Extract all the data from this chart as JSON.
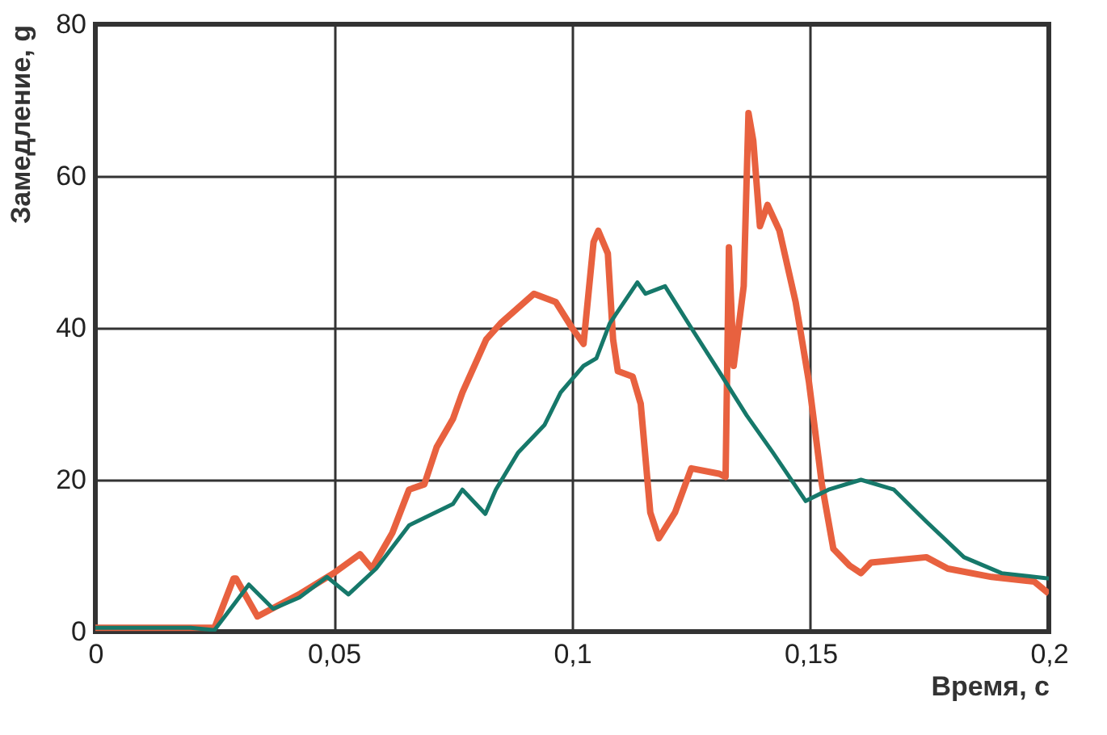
{
  "chart_data": {
    "type": "line",
    "xlabel": "Время, с",
    "ylabel": "Замедление, g",
    "xlim": [
      0,
      0.2
    ],
    "ylim": [
      0,
      80
    ],
    "xticks": [
      0,
      {
        "value": 0.05,
        "label": "0,05"
      },
      {
        "value": 0.1,
        "label": "0,1"
      },
      {
        "value": 0.15,
        "label": "0,15"
      },
      {
        "value": 0.2,
        "label": "0,2"
      }
    ],
    "yticks": [
      0,
      20,
      40,
      60,
      80
    ],
    "grid": true,
    "marker": "none",
    "line_style": "solid",
    "series": [
      {
        "color": "#e8613f",
        "x": [
          0,
          0.01,
          0.02,
          0.025,
          0.029,
          0.0295,
          0.034,
          0.043,
          0.05,
          0.0555,
          0.058,
          0.0623,
          0.0658,
          0.069,
          0.0716,
          0.075,
          0.077,
          0.082,
          0.085,
          0.092,
          0.0966,
          0.1,
          0.1024,
          0.1045,
          0.1055,
          0.1075,
          0.1086,
          0.1096,
          0.1127,
          0.1144,
          0.1164,
          0.1182,
          0.1216,
          0.125,
          0.1308,
          0.1322,
          0.1329,
          0.1339,
          0.136,
          0.137,
          0.138,
          0.1394,
          0.141,
          0.1435,
          0.1469,
          0.1497,
          0.1524,
          0.1548,
          0.1582,
          0.1606,
          0.1627,
          0.1743,
          0.1788,
          0.188,
          0.1969,
          0.2
        ],
        "values": [
          0.5,
          0.5,
          0.5,
          0.5,
          7,
          7,
          2,
          5,
          7.7,
          10.2,
          8.3,
          13,
          18.7,
          19.4,
          24.3,
          28,
          31.5,
          38.5,
          40.6,
          44.5,
          43.4,
          40,
          37.9,
          51.3,
          52.8,
          49.8,
          38.5,
          34.3,
          33.6,
          30,
          15.7,
          12.3,
          15.7,
          21.5,
          20.8,
          20.4,
          50.6,
          35,
          45.5,
          68.3,
          64.7,
          53.4,
          56.2,
          52.8,
          43.4,
          32.8,
          19.4,
          10.9,
          8.7,
          7.7,
          9.1,
          9.8,
          8.3,
          7.2,
          6.6,
          5
        ]
      },
      {
        "color": "#16786a",
        "x": [
          0,
          0.01,
          0.02,
          0.025,
          0.0322,
          0.0373,
          0.0428,
          0.0486,
          0.0531,
          0.0589,
          0.0658,
          0.075,
          0.077,
          0.0818,
          0.084,
          0.0887,
          0.0942,
          0.0976,
          0.1024,
          0.1051,
          0.1079,
          0.1137,
          0.1154,
          0.1195,
          0.125,
          0.1308,
          0.1366,
          0.1421,
          0.149,
          0.1538,
          0.1606,
          0.1675,
          0.1743,
          0.1822,
          0.1901,
          0.2
        ],
        "values": [
          0.5,
          0.5,
          0.5,
          0.2,
          6.2,
          3,
          4.5,
          7.2,
          4.9,
          8.3,
          14,
          16.8,
          18.7,
          15.5,
          18.7,
          23.6,
          27.2,
          31.5,
          35,
          36,
          40.6,
          46,
          44.5,
          45.5,
          40,
          34.3,
          28.5,
          23.6,
          17.2,
          18.7,
          20,
          18.7,
          14.5,
          9.8,
          7.7,
          7
        ]
      }
    ]
  }
}
